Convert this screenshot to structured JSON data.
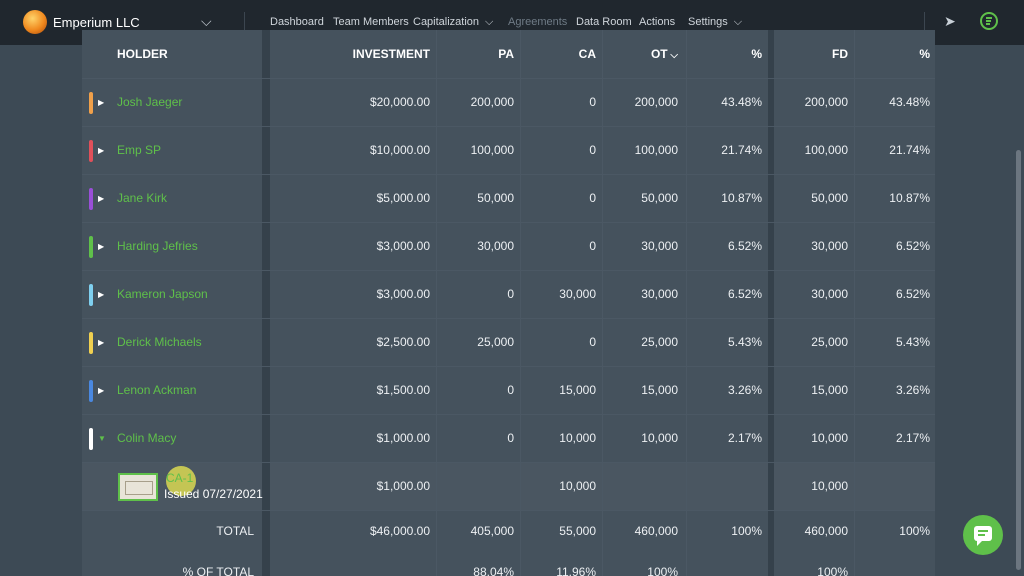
{
  "header": {
    "company": "Emperium LLC",
    "nav": [
      {
        "label": "Dashboard",
        "chevron": false,
        "disabled": false
      },
      {
        "label": "Team Members",
        "chevron": false,
        "disabled": false
      },
      {
        "label": "Capitalization",
        "chevron": true,
        "disabled": false
      },
      {
        "label": "Agreements",
        "chevron": false,
        "disabled": true
      },
      {
        "label": "Data Room",
        "chevron": false,
        "disabled": false
      },
      {
        "label": "Actions",
        "chevron": false,
        "disabled": false
      },
      {
        "label": "Settings",
        "chevron": true,
        "disabled": false
      }
    ]
  },
  "table": {
    "columns": [
      "HOLDER",
      "INVESTMENT",
      "PA",
      "CA",
      "OT",
      "%",
      "FD",
      "%"
    ],
    "sorted_column": "OT",
    "rows": [
      {
        "holder": "Josh Jaeger",
        "color": "#f0a04a",
        "investment": "$20,000.00",
        "pa": "200,000",
        "ca": "0",
        "ot": "200,000",
        "pct": "43.48%",
        "fd": "200,000",
        "fd_pct": "43.48%",
        "expanded": false
      },
      {
        "holder": "Emp SP",
        "color": "#e0505a",
        "investment": "$10,000.00",
        "pa": "100,000",
        "ca": "0",
        "ot": "100,000",
        "pct": "21.74%",
        "fd": "100,000",
        "fd_pct": "21.74%",
        "expanded": false
      },
      {
        "holder": "Jane Kirk",
        "color": "#9a4fd8",
        "investment": "$5,000.00",
        "pa": "50,000",
        "ca": "0",
        "ot": "50,000",
        "pct": "10.87%",
        "fd": "50,000",
        "fd_pct": "10.87%",
        "expanded": false
      },
      {
        "holder": "Harding Jefries",
        "color": "#5fc04a",
        "investment": "$3,000.00",
        "pa": "30,000",
        "ca": "0",
        "ot": "30,000",
        "pct": "6.52%",
        "fd": "30,000",
        "fd_pct": "6.52%",
        "expanded": false
      },
      {
        "holder": "Kameron Japson",
        "color": "#7fd0f0",
        "investment": "$3,000.00",
        "pa": "0",
        "ca": "30,000",
        "ot": "30,000",
        "pct": "6.52%",
        "fd": "30,000",
        "fd_pct": "6.52%",
        "expanded": false
      },
      {
        "holder": "Derick Michaels",
        "color": "#f0d050",
        "investment": "$2,500.00",
        "pa": "25,000",
        "ca": "0",
        "ot": "25,000",
        "pct": "5.43%",
        "fd": "25,000",
        "fd_pct": "5.43%",
        "expanded": false
      },
      {
        "holder": "Lenon Ackman",
        "color": "#4a88e0",
        "investment": "$1,500.00",
        "pa": "0",
        "ca": "15,000",
        "ot": "15,000",
        "pct": "3.26%",
        "fd": "15,000",
        "fd_pct": "3.26%",
        "expanded": false
      },
      {
        "holder": "Colin Macy",
        "color": "#ffffff",
        "investment": "$1,000.00",
        "pa": "0",
        "ca": "10,000",
        "ot": "10,000",
        "pct": "2.17%",
        "fd": "10,000",
        "fd_pct": "2.17%",
        "expanded": true
      }
    ],
    "sub_row": {
      "certificate": "CA-1",
      "issued": "Issued 07/27/2021",
      "investment": "$1,000.00",
      "ca": "10,000",
      "fd": "10,000"
    },
    "total": {
      "label": "TOTAL",
      "investment": "$46,000.00",
      "pa": "405,000",
      "ca": "55,000",
      "ot": "460,000",
      "pct": "100%",
      "fd": "460,000",
      "fd_pct": "100%"
    },
    "pct_of_total": {
      "label": "% OF TOTAL",
      "pa": "88.04%",
      "ca": "11.96%",
      "ot": "100%",
      "fd": "100%"
    }
  },
  "icons": {
    "rocket": "rocket-icon",
    "status": "status-circle-icon",
    "chat": "chat-icon"
  },
  "colors": {
    "accent": "#5fc04a",
    "nav_bg": "#20272e",
    "page_bg": "#3d4a55"
  }
}
